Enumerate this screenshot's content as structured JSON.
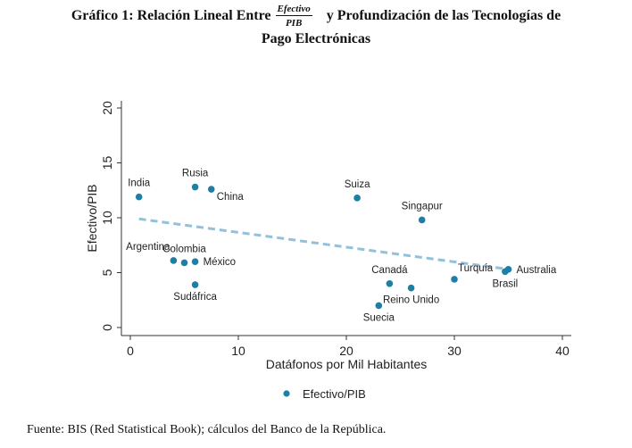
{
  "title": {
    "prefix": "Gráfico 1: Relación Lineal Entre",
    "fraction_numerator": "Efectivo",
    "fraction_denominator": "PIB",
    "suffix": "y Profundización de las Tecnologías de",
    "line2": "Pago Electrónicas"
  },
  "source": "Fuente: BIS (Red Statistical Book); cálculos del Banco de la República.",
  "colors": {
    "points": "#1b7fa6",
    "trend": "#93c0da",
    "axis": "#333333"
  },
  "chart_data": {
    "type": "scatter",
    "title": "Relación Lineal Entre Efectivo/PIB y Profundización de las Tecnologías de Pago Electrónicas",
    "xlabel": "Datáfonos por Mil Habitantes",
    "ylabel": "Efectivo/PIB",
    "xlim": [
      0,
      40
    ],
    "ylim": [
      0,
      20
    ],
    "xticks": [
      "0",
      "10",
      "20",
      "30",
      "40"
    ],
    "yticks": [
      "0",
      "5",
      "10",
      "15",
      "20"
    ],
    "xtick_values": [
      0,
      10,
      20,
      30,
      40
    ],
    "ytick_values": [
      0,
      5,
      10,
      15,
      20
    ],
    "grid": false,
    "legend": {
      "position": "bottom-center",
      "entries": [
        "Efectivo/PIB"
      ]
    },
    "series": [
      {
        "name": "Efectivo/PIB",
        "points": [
          {
            "label": "India",
            "x": 0.8,
            "y": 11.9,
            "label_pos": "above"
          },
          {
            "label": "Rusia",
            "x": 6.0,
            "y": 12.8,
            "label_pos": "above"
          },
          {
            "label": "China",
            "x": 7.5,
            "y": 12.6,
            "label_pos": "below-right"
          },
          {
            "label": "Argentina",
            "x": 4.0,
            "y": 6.1,
            "label_pos": "above-left"
          },
          {
            "label": "Colombia",
            "x": 5.0,
            "y": 5.9,
            "label_pos": "above"
          },
          {
            "label": "México",
            "x": 6.0,
            "y": 6.0,
            "label_pos": "right"
          },
          {
            "label": "Sudáfrica",
            "x": 6.0,
            "y": 3.9,
            "label_pos": "below"
          },
          {
            "label": "Suiza",
            "x": 21.0,
            "y": 11.8,
            "label_pos": "above"
          },
          {
            "label": "Singapur",
            "x": 27.0,
            "y": 9.8,
            "label_pos": "above"
          },
          {
            "label": "Canadá",
            "x": 24.0,
            "y": 4.0,
            "label_pos": "above"
          },
          {
            "label": "Reino Unido",
            "x": 26.0,
            "y": 3.6,
            "label_pos": "below"
          },
          {
            "label": "Suecia",
            "x": 23.0,
            "y": 2.0,
            "label_pos": "below"
          },
          {
            "label": "Turquía",
            "x": 30.0,
            "y": 4.4,
            "label_pos": "above-right"
          },
          {
            "label": "Brasil",
            "x": 34.7,
            "y": 5.1,
            "label_pos": "below"
          },
          {
            "label": "Australia",
            "x": 35.0,
            "y": 5.3,
            "label_pos": "right"
          }
        ]
      }
    ],
    "trend_line": {
      "name": "Fitted line",
      "style": "dashed",
      "x": [
        0.8,
        34.7
      ],
      "y": [
        9.9,
        5.35
      ]
    }
  }
}
